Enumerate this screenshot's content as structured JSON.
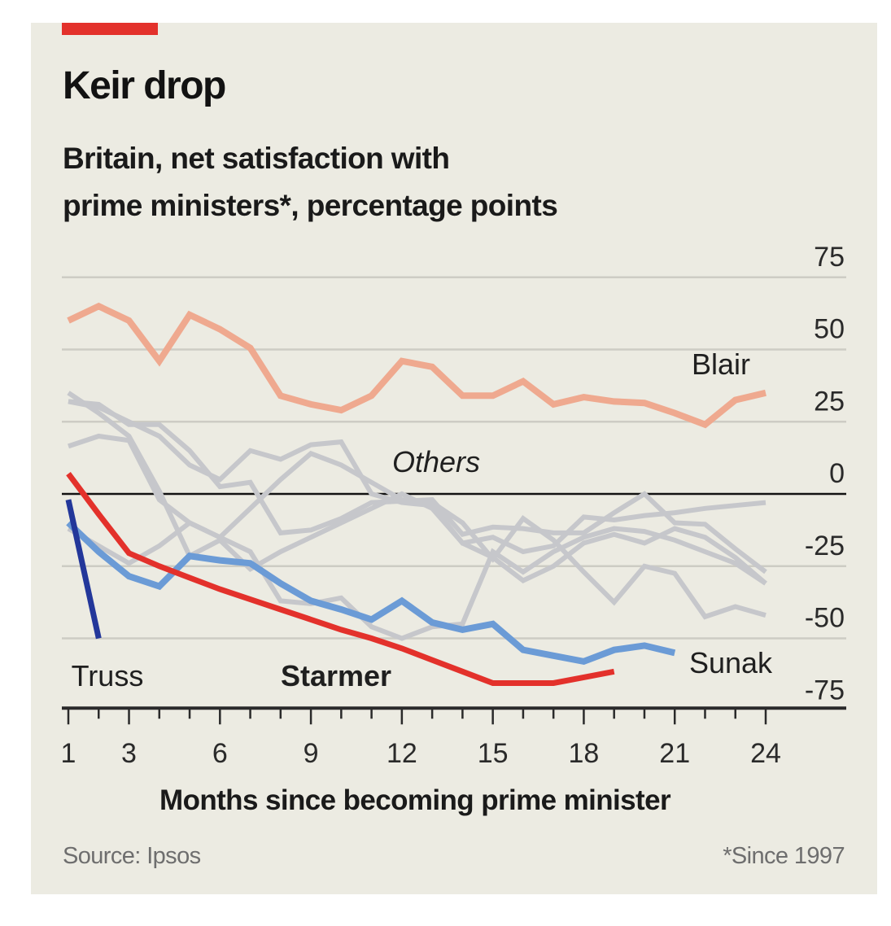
{
  "header": {
    "title": "Keir drop",
    "subtitle_line1": "Britain, net satisfaction with",
    "subtitle_line2": "prime ministers*, percentage points"
  },
  "footer": {
    "source": "Source: Ipsos",
    "note": "*Since 1997"
  },
  "colors": {
    "background": "#ECEBE2",
    "accent_bar": "#E3312B",
    "starmer": "#E3312B",
    "blair": "#EFA98F",
    "sunak": "#6B9BD6",
    "truss": "#23379A",
    "others": "#C6C7CB",
    "gridline": "#CDCCC4",
    "zero_line": "#121212"
  },
  "chart_data": {
    "type": "line",
    "title": "Keir drop",
    "subtitle": "Britain, net satisfaction with prime ministers*, percentage points",
    "xlabel": "Months since becoming prime minister",
    "ylabel": "",
    "xlim": [
      1,
      24
    ],
    "ylim": [
      -75,
      75
    ],
    "x_ticks": [
      1,
      3,
      6,
      9,
      12,
      15,
      18,
      21,
      24
    ],
    "x_minor_ticks": [
      1,
      2,
      3,
      4,
      5,
      6,
      7,
      8,
      9,
      10,
      11,
      12,
      13,
      14,
      15,
      16,
      17,
      18,
      19,
      20,
      21,
      22,
      23,
      24
    ],
    "y_ticks": [
      75,
      50,
      25,
      0,
      -25,
      -50,
      -75
    ],
    "y_tick_labels": [
      "75",
      "50",
      "25",
      "0",
      "-25",
      "-50",
      "-75"
    ],
    "y_axis_position": "right",
    "grid": true,
    "series": [
      {
        "name": "Others",
        "label": "",
        "group": "Others",
        "x_start": 1,
        "values": [
          32,
          31,
          24,
          24,
          15,
          2.5,
          4,
          -13.5,
          -12.5,
          -8.5,
          -3,
          -2.5,
          -2,
          -14,
          -11.5,
          -12,
          -13.5,
          -13.5,
          -6.5,
          0,
          -10,
          -10.5,
          -19,
          -27
        ]
      },
      {
        "name": "Others",
        "label": "",
        "group": "Others",
        "x_start": 1,
        "values": [
          35,
          28,
          20,
          1,
          -21.5,
          -16,
          -26,
          -20,
          -15,
          -10,
          -5,
          0,
          -5,
          -17,
          -15,
          -20,
          -18,
          -8,
          -9,
          -7.5,
          -6.5,
          -5,
          -4,
          -3
        ]
      },
      {
        "name": "Others",
        "label": "",
        "group": "Others",
        "x_start": 1,
        "values": [
          16.5,
          20,
          18.5,
          -2,
          -10,
          -15,
          -5,
          5,
          14,
          10,
          4,
          -2,
          -3,
          -10,
          -22.5,
          -8.5,
          -16,
          -27,
          -37.5,
          -25,
          -27.5,
          -42.5,
          -39,
          -42
        ]
      },
      {
        "name": "Others",
        "label": "",
        "group": "Others",
        "x_start": 1,
        "values": [
          -12,
          -18,
          -24,
          -18,
          -10,
          -15,
          -20,
          -37,
          -38,
          -36,
          -46,
          -50,
          -46,
          -45,
          -20,
          -27,
          -20,
          -15,
          -12,
          -13,
          -16,
          -20,
          -24,
          -31
        ]
      },
      {
        "name": "Others",
        "label": "",
        "group": "Others",
        "x_start": 1,
        "values": [
          32,
          30,
          25,
          20,
          10,
          5,
          15,
          12,
          17,
          18,
          0,
          -3,
          -4,
          -17,
          -22,
          -30,
          -25,
          -17,
          -14,
          -17,
          -12,
          -15,
          -22,
          -31
        ]
      },
      {
        "name": "Blair",
        "label": "Blair",
        "x_start": 1,
        "values": [
          60,
          65,
          60,
          46,
          62,
          57,
          50.5,
          34,
          31,
          29,
          34,
          46,
          44,
          34,
          34,
          39,
          31,
          33.5,
          32,
          31.5,
          28,
          24,
          32.5,
          35
        ]
      },
      {
        "name": "Sunak",
        "label": "Sunak",
        "x_start": 1,
        "values": [
          -10,
          -20,
          -28.5,
          -32,
          -21.5,
          -23,
          -24,
          -31,
          -37,
          -40,
          -43.5,
          -37,
          -44.5,
          -47,
          -45,
          -54,
          -56,
          -58,
          -54,
          -52.5,
          -55
        ]
      },
      {
        "name": "Truss",
        "label": "Truss",
        "x_start": 1,
        "values": [
          -2,
          -50
        ]
      },
      {
        "name": "Starmer",
        "label": "Starmer",
        "x_start": 1,
        "values": [
          7,
          -7,
          -20.5,
          -25,
          -29,
          -33,
          -36.5,
          -40,
          -43.5,
          -47,
          -50,
          -53.5,
          -57.5,
          -61.5,
          -65.5,
          -65.5,
          -65.5,
          -63.5,
          -61.5
        ]
      }
    ],
    "annotations": [
      {
        "text": "Others",
        "style": "italic",
        "near": "middle, just above zero line"
      },
      {
        "text": "Blair",
        "near": "right end of Blair line"
      },
      {
        "text": "Sunak",
        "near": "right end of Sunak line"
      },
      {
        "text": "Truss",
        "near": "bottom-left"
      },
      {
        "text": "Starmer",
        "style": "bold",
        "near": "bottom centre-left"
      }
    ]
  }
}
